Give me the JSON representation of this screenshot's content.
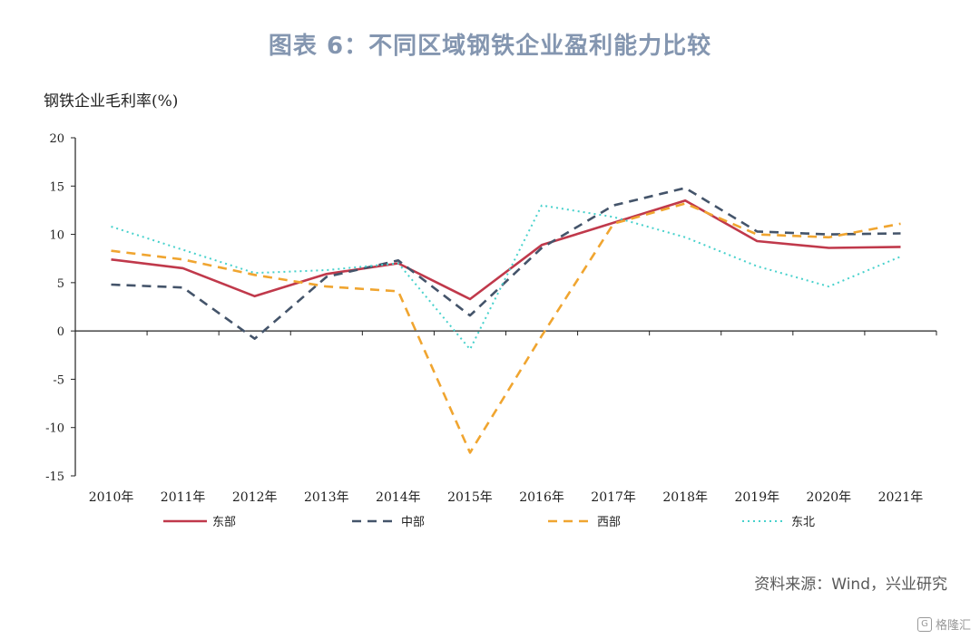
{
  "title": "图表 6：不同区域钢铁企业盈利能力比较",
  "source": "资料来源：Wind，兴业研究",
  "watermark": "格隆汇",
  "chart_data": {
    "type": "line",
    "ylabel": "钢铁企业毛利率(%)",
    "xlabel": "",
    "categories": [
      "2010年",
      "2011年",
      "2012年",
      "2013年",
      "2014年",
      "2015年",
      "2016年",
      "2017年",
      "2018年",
      "2019年",
      "2020年",
      "2021年"
    ],
    "ylim": [
      -15,
      20
    ],
    "yticks": [
      20,
      15,
      10,
      5,
      0,
      -5,
      -10,
      -15
    ],
    "grid": false,
    "legend": "bottom",
    "series": [
      {
        "name": "东部",
        "color": "#c0394b",
        "dash": "solid",
        "values": [
          7.4,
          6.5,
          3.6,
          5.9,
          7.0,
          3.3,
          8.9,
          11.2,
          13.5,
          9.3,
          8.6,
          8.7
        ]
      },
      {
        "name": "中部",
        "color": "#44546a",
        "dash": "dashed",
        "values": [
          4.8,
          4.5,
          -0.8,
          5.6,
          7.3,
          1.6,
          8.6,
          13.0,
          14.8,
          10.3,
          10.0,
          10.1
        ]
      },
      {
        "name": "西部",
        "color": "#f0a530",
        "dash": "dashed",
        "values": [
          8.3,
          7.4,
          5.8,
          4.6,
          4.1,
          -12.6,
          -0.5,
          11.1,
          13.2,
          10.0,
          9.7,
          11.1
        ]
      },
      {
        "name": "东北",
        "color": "#47d1cc",
        "dash": "dotted",
        "values": [
          10.8,
          8.4,
          6.0,
          6.3,
          7.0,
          -1.9,
          13.0,
          11.8,
          9.7,
          6.7,
          4.6,
          7.7
        ]
      }
    ]
  }
}
